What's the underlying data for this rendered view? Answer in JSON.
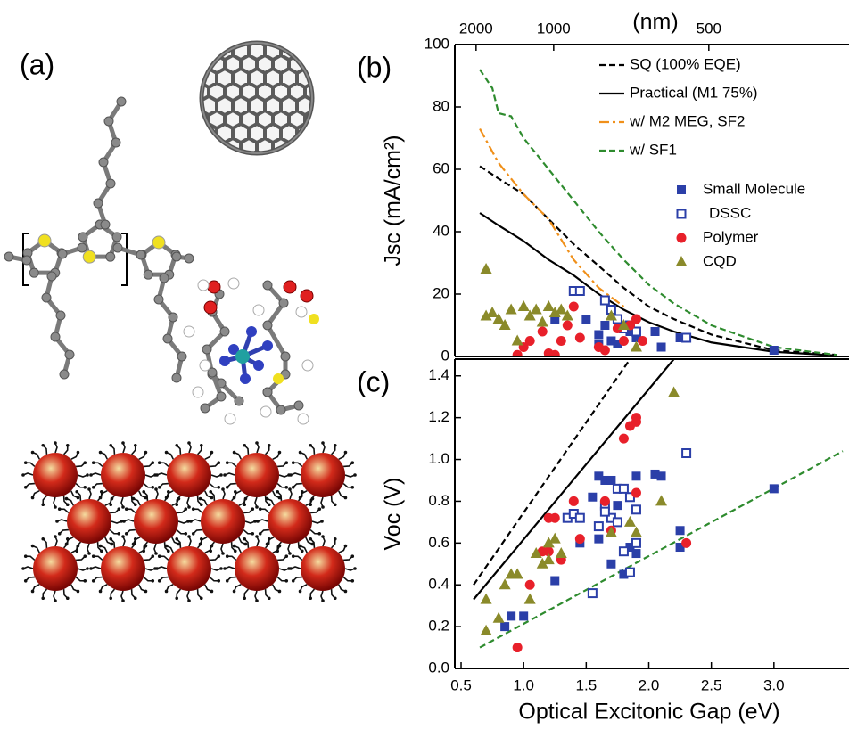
{
  "panel_a": {
    "label": "(a)"
  },
  "chart_data": [
    {
      "type": "scatter",
      "label": "(b)",
      "ylabel": "Jsc (mA/cm²)",
      "x2label": "(nm)",
      "x2ticks": [
        2000,
        1000,
        500
      ],
      "xlim": [
        0.45,
        3.55
      ],
      "ylim": [
        0,
        100
      ],
      "yticks": [
        0,
        20,
        40,
        60,
        80,
        100
      ],
      "legend": "upper right",
      "series": [
        {
          "name": "SQ (100% EQE)",
          "color": "#000000",
          "kind": "line",
          "dash": "dashed",
          "x": [
            0.65,
            0.8,
            1.0,
            1.2,
            1.4,
            1.6,
            1.8,
            2.0,
            2.2,
            2.5,
            3.0,
            3.5
          ],
          "values": [
            61,
            57,
            52,
            44,
            36,
            29,
            22,
            16,
            12,
            7,
            2,
            0.5
          ]
        },
        {
          "name": "Practical (M1 75%)",
          "color": "#000000",
          "kind": "line",
          "dash": "solid",
          "x": [
            0.65,
            0.8,
            1.0,
            1.2,
            1.4,
            1.6,
            1.8,
            2.0,
            2.2,
            2.5,
            3.0,
            3.5
          ],
          "values": [
            46,
            42,
            37,
            31,
            26,
            20,
            15,
            11,
            8,
            4.5,
            1.5,
            0.3
          ]
        },
        {
          "name": "w/ M2 MEG, SF2",
          "color": "#f0901a",
          "kind": "line",
          "dash": "dashdot",
          "x": [
            0.65,
            0.8,
            1.0,
            1.2,
            1.4,
            1.6,
            1.8
          ],
          "values": [
            73,
            62,
            52,
            44,
            31,
            22,
            16
          ]
        },
        {
          "name": "w/ SF1",
          "color": "#2e8b2e",
          "kind": "line",
          "dash": "dashed",
          "x": [
            0.65,
            0.75,
            0.8,
            0.9,
            1.0,
            1.2,
            1.4,
            1.6,
            1.8,
            2.0,
            2.2,
            2.5,
            3.0,
            3.5
          ],
          "values": [
            92,
            86,
            78,
            77,
            70,
            60,
            50,
            40,
            31,
            23,
            17,
            10,
            3,
            0.5
          ]
        },
        {
          "name": "Small Molecule",
          "color": "#2b3fa8",
          "kind": "scatter",
          "marker": "square",
          "x": [
            1.25,
            1.5,
            1.6,
            1.65,
            1.7,
            1.75,
            1.85,
            1.9,
            2.05,
            2.1,
            2.25,
            3.0,
            1.6
          ],
          "values": [
            12,
            12,
            7,
            10,
            5,
            4,
            8,
            6,
            8,
            3,
            6,
            2,
            4
          ]
        },
        {
          "name": "DSSC",
          "color": "#2b3fa8",
          "kind": "scatter",
          "marker": "open-square",
          "x": [
            1.4,
            1.45,
            1.65,
            1.7,
            1.75,
            1.85,
            1.8,
            1.9,
            2.3
          ],
          "values": [
            21,
            21,
            18,
            15,
            12,
            10,
            9,
            8,
            6
          ]
        },
        {
          "name": "Polymer",
          "color": "#e8202a",
          "kind": "scatter",
          "marker": "circle",
          "x": [
            0.95,
            1.0,
            1.05,
            1.15,
            1.2,
            1.25,
            1.3,
            1.35,
            1.4,
            1.45,
            1.6,
            1.65,
            1.75,
            1.8,
            1.85,
            1.9,
            1.95
          ],
          "values": [
            0.5,
            3,
            5,
            8,
            1,
            0.5,
            5,
            10,
            16,
            6,
            3,
            2,
            9,
            5,
            10,
            12,
            5
          ]
        },
        {
          "name": "CQD",
          "color": "#8a8a2a",
          "kind": "scatter",
          "marker": "triangle",
          "x": [
            0.7,
            0.7,
            0.75,
            0.8,
            0.85,
            0.9,
            0.95,
            1.0,
            1.05,
            1.1,
            1.15,
            1.2,
            1.25,
            1.3,
            1.35,
            1.7,
            1.8,
            1.9
          ],
          "values": [
            28,
            13,
            14,
            12,
            10,
            15,
            5,
            16,
            13,
            15,
            11,
            16,
            14,
            15,
            13,
            13,
            10,
            3
          ]
        }
      ]
    },
    {
      "type": "scatter",
      "label": "(c)",
      "ylabel": "Voc (V)",
      "xlabel": "Optical Excitonic Gap (eV)",
      "xlim": [
        0.45,
        3.55
      ],
      "ylim": [
        0,
        1.48
      ],
      "xticks": [
        0.5,
        {
          "value": 1,
          "label": "1.0"
        },
        1.5,
        {
          "value": 2,
          "label": "2.0"
        },
        2.5,
        {
          "value": 3,
          "label": "3.0"
        }
      ],
      "yticks": [
        {
          "value": 0,
          "label": "0.0"
        },
        0.2,
        0.4,
        0.6,
        0.8,
        {
          "value": 1,
          "label": "1.0"
        },
        1.2,
        1.4
      ],
      "series": [
        {
          "color": "#000000",
          "kind": "line",
          "dash": "dashed",
          "x": [
            0.6,
            1.85
          ],
          "values": [
            0.4,
            1.48
          ]
        },
        {
          "color": "#000000",
          "kind": "line",
          "dash": "solid",
          "x": [
            0.6,
            2.2
          ],
          "values": [
            0.33,
            1.48
          ]
        },
        {
          "color": "#2e8b2e",
          "kind": "line",
          "dash": "dashed",
          "x": [
            0.65,
            3.55
          ],
          "values": [
            0.1,
            1.04
          ]
        },
        {
          "color": "#2b3fa8",
          "kind": "scatter",
          "marker": "square",
          "x": [
            0.85,
            0.9,
            1.0,
            1.25,
            1.45,
            1.55,
            1.6,
            1.65,
            1.6,
            1.7,
            1.75,
            1.8,
            1.85,
            1.9,
            2.05,
            2.1,
            2.25,
            2.25,
            3.0,
            1.7,
            1.9
          ],
          "values": [
            0.2,
            0.25,
            0.25,
            0.42,
            0.6,
            0.82,
            0.92,
            0.9,
            0.62,
            0.5,
            0.78,
            0.45,
            0.58,
            0.92,
            0.93,
            0.92,
            0.66,
            0.58,
            0.86,
            0.9,
            0.55
          ]
        },
        {
          "color": "#2b3fa8",
          "kind": "scatter",
          "marker": "open-square",
          "x": [
            1.35,
            1.4,
            1.45,
            1.55,
            1.6,
            1.65,
            1.7,
            1.75,
            1.8,
            1.75,
            1.85,
            1.8,
            1.9,
            1.9,
            1.65,
            2.3,
            1.85
          ],
          "values": [
            0.72,
            0.74,
            0.72,
            0.36,
            0.68,
            0.78,
            0.72,
            0.86,
            0.86,
            0.7,
            0.46,
            0.56,
            0.76,
            0.6,
            0.75,
            1.03,
            0.82
          ]
        },
        {
          "color": "#e8202a",
          "kind": "scatter",
          "marker": "circle",
          "x": [
            0.95,
            1.05,
            1.15,
            1.2,
            1.25,
            1.3,
            1.4,
            1.45,
            1.65,
            1.7,
            1.8,
            1.85,
            1.9,
            1.9,
            1.9,
            2.3,
            1.2
          ],
          "values": [
            0.1,
            0.4,
            0.56,
            0.72,
            0.72,
            0.52,
            0.8,
            0.62,
            0.8,
            0.66,
            1.1,
            1.16,
            1.2,
            1.18,
            0.84,
            0.6,
            0.56
          ]
        },
        {
          "color": "#8a8a2a",
          "kind": "scatter",
          "marker": "triangle",
          "x": [
            0.7,
            0.7,
            0.8,
            0.85,
            0.9,
            0.95,
            1.05,
            1.1,
            1.15,
            1.2,
            1.25,
            1.3,
            1.7,
            1.85,
            1.9,
            2.1,
            2.2,
            1.2
          ],
          "values": [
            0.18,
            0.33,
            0.24,
            0.4,
            0.45,
            0.45,
            0.33,
            0.55,
            0.5,
            0.6,
            0.62,
            0.55,
            0.65,
            0.7,
            0.65,
            0.8,
            1.32,
            0.52
          ]
        }
      ]
    }
  ]
}
